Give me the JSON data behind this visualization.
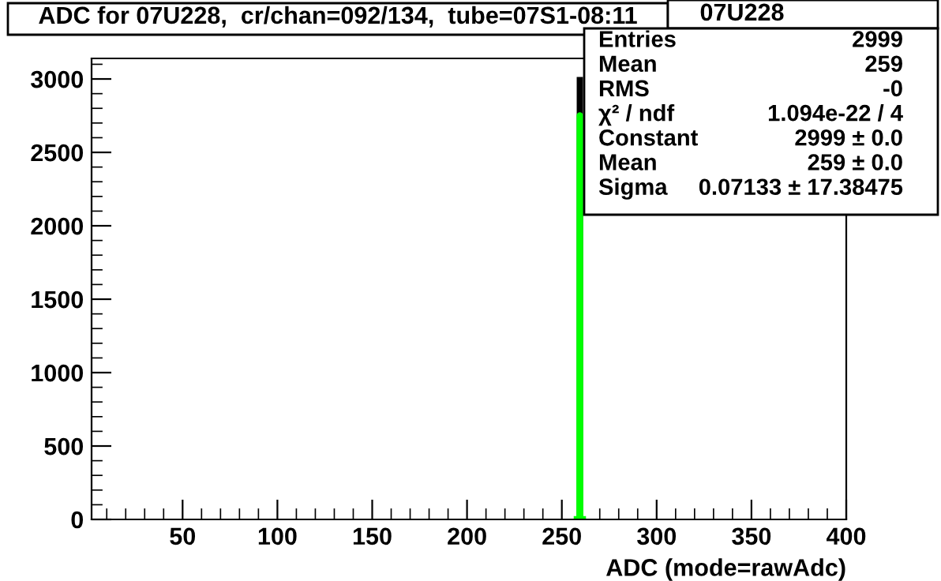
{
  "chart_data": {
    "type": "histogram",
    "title": "ADC for 07U228,  cr/chan=092/134,  tube=07S1-08:11",
    "subtitle": "07U228",
    "xlabel": "ADC (mode=rawAdc)",
    "series": [
      {
        "bins": [
          258,
          259,
          260,
          261
        ],
        "values": [
          0,
          2999,
          0
        ],
        "color": "#000000"
      },
      {
        "type": "line",
        "x": [
          258,
          259.4,
          259.5,
          259.6,
          261
        ],
        "values": [
          0,
          0,
          2750,
          0,
          0
        ],
        "color": "#00ff00"
      }
    ],
    "xlim": [
      2,
      400
    ],
    "ylim": [
      0,
      3140
    ],
    "xticks": [
      50,
      100,
      150,
      200,
      250,
      300,
      350,
      400
    ],
    "yticks": [
      0,
      500,
      1000,
      1500,
      2000,
      2500,
      3000
    ],
    "grid": false,
    "legend": false,
    "annotations": [
      "Entries",
      "2999",
      "Mean",
      "259",
      "RMS",
      "-0",
      "χ² / ndf",
      "1.094e-22 / 4",
      "Constant",
      "2999 ± 0.0",
      "Mean",
      "259 ± 0.0",
      "Sigma",
      "0.07133 ± 17.38475"
    ]
  }
}
